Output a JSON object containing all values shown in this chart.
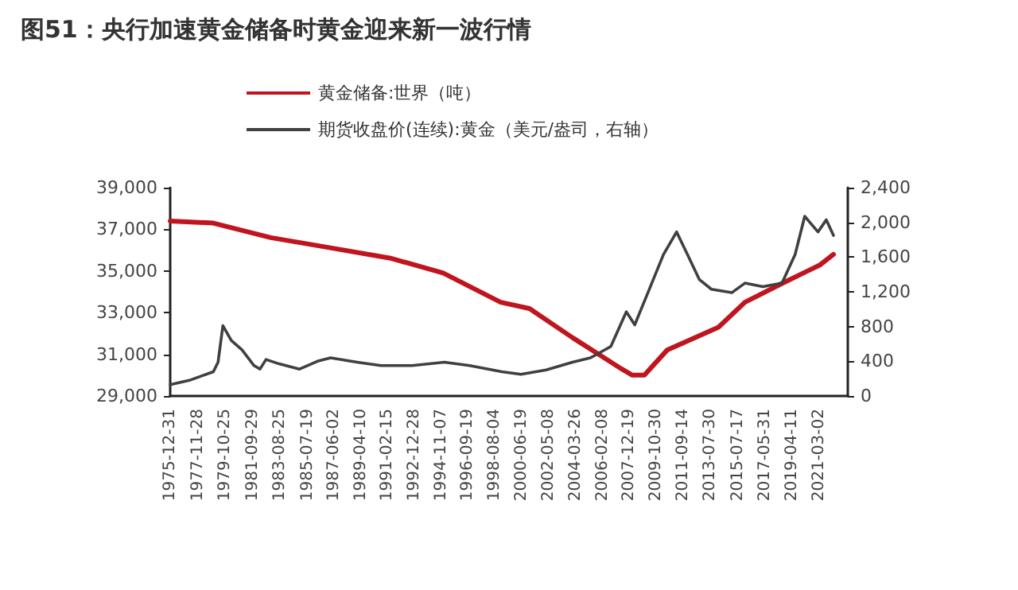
{
  "chart_data": {
    "type": "line",
    "title": "图51：央行加速黄金储备时黄金迎来新一波行情",
    "legend": "top",
    "grid": false,
    "marker": "none",
    "xlim": [
      "1975-12-31",
      "2023-03-01"
    ],
    "xticks": [
      "1975-12-31",
      "1977-11-28",
      "1979-10-25",
      "1981-09-29",
      "1983-08-25",
      "1985-07-19",
      "1987-06-02",
      "1989-04-10",
      "1991-02-15",
      "1992-12-28",
      "1994-11-07",
      "1996-09-19",
      "1998-08-04",
      "2000-06-19",
      "2002-05-08",
      "2004-03-26",
      "2006-02-08",
      "2007-12-19",
      "2009-10-30",
      "2011-09-14",
      "2013-07-30",
      "2015-07-17",
      "2017-05-31",
      "2019-04-11",
      "2021-03-02"
    ],
    "ylim": [
      29000,
      39000
    ],
    "yticks": [
      {
        "value": 29000,
        "label": "29,000"
      },
      {
        "value": 31000,
        "label": "31,000"
      },
      {
        "value": 33000,
        "label": "33,000"
      },
      {
        "value": 35000,
        "label": "35,000"
      },
      {
        "value": 37000,
        "label": "37,000"
      },
      {
        "value": 39000,
        "label": "39,000"
      }
    ],
    "y2lim": [
      0,
      2400
    ],
    "y2ticks": [
      0,
      400,
      800,
      {
        "value": 1200,
        "label": "1,200"
      },
      {
        "value": 1600,
        "label": "1,600"
      },
      {
        "value": 2000,
        "label": "2,000"
      },
      {
        "value": 2400,
        "label": "2,400"
      }
    ],
    "series": [
      {
        "name": "黄金储备:世界（吨）",
        "color": "#c0141e",
        "x": [
          "1976-01",
          "1979-01",
          "1983-01",
          "1986-06",
          "1991-06",
          "1995-01",
          "1999-01",
          "2001-01",
          "2004-01",
          "2007-06",
          "2008-03",
          "2009-01",
          "2010-08",
          "2014-03",
          "2016-01",
          "2018-08",
          "2021-04",
          "2022-03"
        ],
        "values": [
          37400,
          37300,
          36600,
          36200,
          35600,
          34900,
          33500,
          33200,
          31800,
          30300,
          30000,
          30000,
          31200,
          32300,
          33500,
          34400,
          35300,
          35800
        ]
      },
      {
        "name": "期货收盘价(连续):黄金（美元/盎司，右轴）",
        "color": "#404040",
        "axis": "y2",
        "x": [
          "1976-01",
          "1977-05",
          "1979-01",
          "1979-05",
          "1979-09",
          "1980-04",
          "1981-01",
          "1981-11",
          "1982-04",
          "1982-09",
          "1983-08",
          "1985-01",
          "1986-04",
          "1987-03",
          "1989-01",
          "1990-09",
          "1992-11",
          "1995-02",
          "1996-11",
          "1999-02",
          "2000-06",
          "2002-03",
          "2004-01",
          "2005-04",
          "2006-09",
          "2007-10",
          "2008-05",
          "2009-04",
          "2010-05",
          "2011-04",
          "2012-01",
          "2012-11",
          "2013-09",
          "2015-02",
          "2016-01",
          "2017-04",
          "2018-08",
          "2019-07",
          "2020-03",
          "2021-02",
          "2021-09",
          "2022-03"
        ],
        "values": [
          130,
          180,
          280,
          390,
          810,
          640,
          530,
          350,
          310,
          420,
          370,
          310,
          400,
          440,
          390,
          350,
          350,
          390,
          350,
          280,
          250,
          300,
          390,
          440,
          570,
          970,
          820,
          1190,
          1630,
          1890,
          1630,
          1340,
          1230,
          1190,
          1300,
          1260,
          1300,
          1630,
          2070,
          1890,
          2030,
          1850
        ]
      }
    ]
  }
}
